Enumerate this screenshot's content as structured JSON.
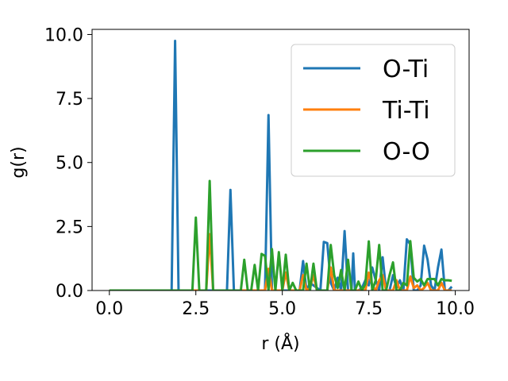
{
  "chart_data": {
    "type": "line",
    "xlabel": "r (Å)",
    "ylabel": "g(r)",
    "xlim": [
      -0.5,
      10.4
    ],
    "ylim": [
      0.0,
      10.2
    ],
    "xticks": [
      0.0,
      2.5,
      5.0,
      7.5,
      10.0
    ],
    "xtick_labels": [
      "0.0",
      "2.5",
      "5.0",
      "7.5",
      "10.0"
    ],
    "yticks": [
      0.0,
      2.5,
      5.0,
      7.5,
      10.0
    ],
    "ytick_labels": [
      "0.0",
      "2.5",
      "5.0",
      "7.5",
      "10.0"
    ],
    "grid": false,
    "legend_position": "top-right",
    "series": [
      {
        "name": "O-Ti",
        "color": "#1f77b4",
        "x": [
          0.0,
          1.8,
          1.9,
          2.0,
          2.1,
          3.4,
          3.5,
          3.6,
          4.5,
          4.6,
          4.7,
          5.5,
          5.6,
          5.7,
          5.8,
          6.1,
          6.2,
          6.3,
          6.4,
          6.5,
          6.6,
          6.7,
          6.8,
          6.9,
          7.0,
          7.05,
          7.1,
          7.2,
          7.3,
          7.4,
          7.5,
          7.6,
          7.7,
          7.8,
          7.9,
          8.0,
          8.1,
          8.2,
          8.3,
          8.4,
          8.5,
          8.6,
          8.7,
          8.8,
          8.9,
          9.0,
          9.1,
          9.2,
          9.3,
          9.4,
          9.5,
          9.6,
          9.7,
          9.8,
          9.9
        ],
        "y": [
          0.0,
          0.0,
          9.75,
          0.0,
          0.0,
          0.0,
          3.93,
          0.0,
          0.0,
          6.85,
          0.0,
          0.0,
          1.15,
          0.0,
          0.3,
          0.0,
          1.9,
          1.85,
          0.3,
          0.0,
          0.5,
          0.0,
          2.32,
          0.0,
          0.0,
          1.45,
          0.0,
          0.0,
          0.1,
          0.4,
          0.2,
          0.9,
          0.4,
          0.0,
          1.3,
          0.0,
          0.0,
          0.6,
          0.1,
          0.4,
          0.0,
          2.0,
          1.8,
          0.0,
          0.0,
          0.2,
          1.75,
          1.2,
          0.2,
          0.0,
          0.9,
          1.6,
          0.0,
          0.0,
          0.15
        ]
      },
      {
        "name": "Ti-Ti",
        "color": "#ff7f0e",
        "x": [
          0.0,
          2.8,
          2.9,
          3.0,
          4.5,
          4.6,
          4.7,
          5.0,
          5.1,
          5.2,
          5.5,
          5.6,
          5.7,
          5.8,
          5.9,
          6.0,
          6.3,
          6.4,
          6.5,
          7.4,
          7.5,
          7.6,
          7.7,
          7.8,
          7.9,
          8.0,
          8.2,
          8.3,
          8.4,
          8.6,
          8.7,
          8.8,
          8.9,
          9.0,
          9.1,
          9.2,
          9.3,
          9.4,
          9.5,
          9.6,
          9.7,
          9.8,
          9.9
        ],
        "y": [
          0.0,
          0.0,
          2.2,
          0.0,
          0.0,
          0.85,
          0.0,
          0.0,
          0.7,
          0.0,
          0.0,
          0.6,
          0.0,
          0.1,
          0.6,
          0.0,
          0.0,
          0.9,
          0.0,
          0.0,
          0.7,
          0.2,
          0.0,
          0.4,
          0.6,
          0.0,
          0.0,
          0.4,
          0.0,
          0.0,
          0.55,
          0.1,
          0.2,
          0.0,
          0.1,
          0.3,
          0.0,
          0.0,
          0.0,
          0.3,
          0.0,
          0.0,
          0.0
        ]
      },
      {
        "name": "O-O",
        "color": "#2ca02c",
        "x": [
          0.0,
          2.4,
          2.5,
          2.6,
          2.8,
          2.9,
          3.0,
          3.8,
          3.9,
          4.0,
          4.1,
          4.2,
          4.3,
          4.4,
          4.5,
          4.6,
          4.7,
          4.8,
          4.9,
          5.0,
          5.1,
          5.2,
          5.3,
          5.4,
          5.5,
          5.6,
          5.7,
          5.8,
          5.9,
          6.0,
          6.1,
          6.2,
          6.3,
          6.4,
          6.5,
          6.6,
          6.7,
          6.8,
          6.9,
          7.0,
          7.1,
          7.2,
          7.3,
          7.4,
          7.5,
          7.6,
          7.7,
          7.8,
          7.9,
          8.0,
          8.1,
          8.2,
          8.3,
          8.4,
          8.5,
          8.6,
          8.7,
          8.8,
          8.9,
          9.0,
          9.1,
          9.2,
          9.3,
          9.4,
          9.5,
          9.6,
          9.7,
          9.8,
          9.9
        ],
        "y": [
          0.0,
          0.0,
          2.85,
          0.0,
          0.0,
          4.28,
          0.0,
          0.0,
          1.2,
          0.0,
          0.0,
          1.0,
          0.0,
          1.43,
          1.35,
          0.0,
          1.62,
          0.0,
          1.5,
          0.0,
          1.4,
          0.0,
          0.3,
          0.0,
          0.0,
          0.0,
          1.05,
          0.0,
          1.05,
          0.0,
          0.0,
          0.0,
          0.0,
          1.78,
          0.6,
          0.1,
          0.8,
          0.0,
          1.2,
          0.0,
          0.0,
          0.35,
          0.0,
          0.25,
          1.92,
          0.0,
          0.4,
          1.78,
          0.0,
          0.0,
          0.6,
          1.1,
          0.0,
          0.0,
          0.3,
          0.2,
          1.93,
          0.5,
          0.35,
          0.45,
          0.2,
          0.45,
          0.45,
          0.45,
          0.2,
          0.45,
          0.4,
          0.4,
          0.38
        ]
      }
    ]
  }
}
